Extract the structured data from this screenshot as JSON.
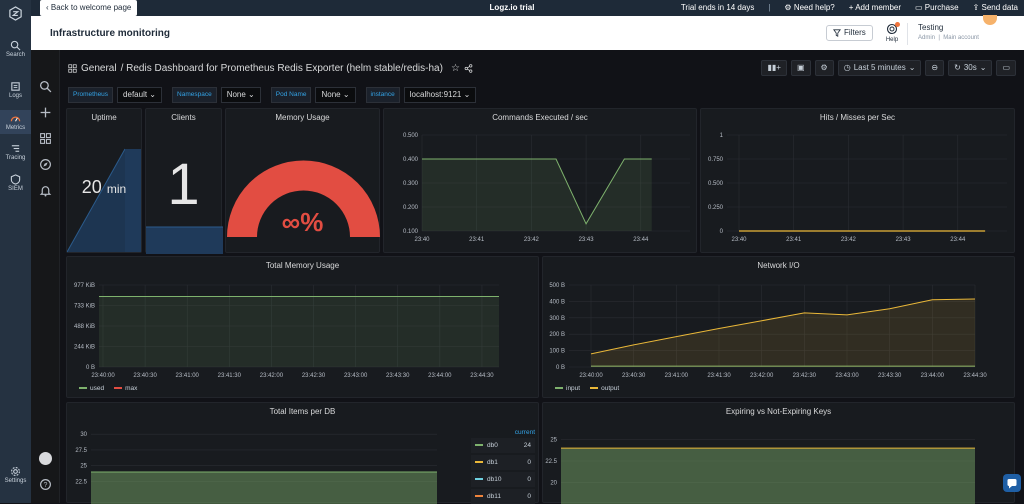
{
  "topbar": {
    "back_label": "Back to welcome page",
    "app_title": "Logz.io trial",
    "trial": "Trial ends in 14 days",
    "need_help": "Need help?",
    "add_member": "+ Add member",
    "purchase": "Purchase",
    "send_data": "Send data"
  },
  "leftnav": {
    "items": [
      {
        "label": "Search",
        "icon": "search-icon"
      },
      {
        "label": "Logs",
        "icon": "logs-icon"
      },
      {
        "label": "Metrics",
        "icon": "metrics-icon"
      },
      {
        "label": "Tracing",
        "icon": "tracing-icon"
      },
      {
        "label": "SIEM",
        "icon": "siem-icon"
      },
      {
        "label": "Settings",
        "icon": "gear-icon"
      }
    ]
  },
  "header": {
    "page_title": "Infrastructure monitoring",
    "filters_label": "Filters",
    "help_label": "Help",
    "account_name": "Testing",
    "account_role": "Admin",
    "account_link": "Main account"
  },
  "dashboard": {
    "folder": "General",
    "name": "/ Redis Dashboard for Prometheus Redis Exporter (helm stable/redis-ha)",
    "time_range": "Last 5 minutes",
    "refresh": "30s"
  },
  "variables": [
    {
      "label": "Prometheus",
      "value": "default"
    },
    {
      "label": "Namespace",
      "value": "None"
    },
    {
      "label": "Pod Name",
      "value": "None"
    },
    {
      "label": "instance",
      "value": "localhost:9121"
    }
  ],
  "panels": {
    "uptime": {
      "title": "Uptime",
      "value": "20",
      "unit": "min"
    },
    "clients": {
      "title": "Clients",
      "value": "1"
    },
    "memory": {
      "title": "Memory Usage",
      "value": "∞%"
    },
    "commands": {
      "title": "Commands Executed / sec"
    },
    "hits": {
      "title": "Hits / Misses per Sec"
    },
    "total_memory": {
      "title": "Total Memory Usage"
    },
    "network": {
      "title": "Network I/O"
    },
    "items_db": {
      "title": "Total Items per DB",
      "current_label": "current"
    },
    "expiring": {
      "title": "Expiring vs Not-Expiring Keys"
    }
  },
  "chart_data": [
    {
      "id": "commands",
      "type": "line",
      "title": "Commands Executed / sec",
      "x": [
        "23:40",
        "23:41",
        "23:42",
        "23:43",
        "23:44"
      ],
      "series": [
        {
          "values_pts": [
            [
              0,
              0.4
            ],
            [
              2.45,
              0.4
            ],
            [
              3.0,
              0.13
            ],
            [
              3.7,
              0.4
            ],
            [
              4.2,
              0.4
            ]
          ]
        }
      ],
      "yticks": [
        "0.100",
        "0.200",
        "0.300",
        "0.400",
        "0.500"
      ],
      "ylim": [
        0.1,
        0.5
      ]
    },
    {
      "id": "hits",
      "type": "line",
      "title": "Hits / Misses per Sec",
      "x": [
        "23:40",
        "23:41",
        "23:42",
        "23:43",
        "23:44"
      ],
      "series": [
        {
          "values_pts": [
            [
              0,
              0
            ],
            [
              4.5,
              0
            ]
          ]
        }
      ],
      "yticks": [
        "0",
        "0.250",
        "0.500",
        "0.750",
        "1"
      ],
      "ylim": [
        0,
        1
      ]
    },
    {
      "id": "total_memory",
      "type": "area",
      "title": "Total Memory Usage",
      "x": [
        "23:40:00",
        "23:40:30",
        "23:41:00",
        "23:41:30",
        "23:42:00",
        "23:42:30",
        "23:43:00",
        "23:43:30",
        "23:44:00",
        "23:44:30"
      ],
      "yticks": [
        "0 B",
        "244 KiB",
        "488 KiB",
        "733 KiB",
        "977 KiB"
      ],
      "ylim": [
        0,
        977
      ],
      "series": [
        {
          "name": "used",
          "values": [
            840,
            840,
            840,
            840,
            840,
            840,
            840,
            840,
            840,
            840
          ]
        },
        {
          "name": "max",
          "values": [
            0,
            0,
            0,
            0,
            0,
            0,
            0,
            0,
            0,
            0
          ]
        }
      ]
    },
    {
      "id": "network",
      "type": "area",
      "title": "Network I/O",
      "x": [
        "23:40:00",
        "23:40:30",
        "23:41:00",
        "23:41:30",
        "23:42:00",
        "23:42:30",
        "23:43:00",
        "23:43:30",
        "23:44:00",
        "23:44:30"
      ],
      "yticks": [
        "0 B",
        "100 B",
        "200 B",
        "300 B",
        "400 B",
        "500 B"
      ],
      "ylim": [
        0,
        500
      ],
      "series": [
        {
          "name": "input",
          "values": [
            5,
            5,
            5,
            5,
            5,
            5,
            5,
            5,
            5,
            5
          ]
        },
        {
          "name": "output",
          "values": [
            80,
            135,
            185,
            235,
            282,
            330,
            318,
            355,
            410,
            415
          ]
        }
      ]
    },
    {
      "id": "items_db",
      "type": "area",
      "title": "Total Items per DB",
      "yticks": [
        "22.5",
        "25",
        "27.5",
        "30"
      ],
      "ylim": [
        21,
        30.5
      ],
      "series": [
        {
          "name": "db0",
          "current": "24"
        },
        {
          "name": "db1",
          "current": "0"
        },
        {
          "name": "db10",
          "current": "0"
        },
        {
          "name": "db11",
          "current": "0"
        }
      ]
    },
    {
      "id": "expiring",
      "type": "area",
      "title": "Expiring vs Not-Expiring Keys",
      "yticks": [
        "20",
        "22.5",
        "25"
      ],
      "ylim": [
        19,
        26
      ]
    }
  ],
  "colors": {
    "green": "#7eb26d",
    "orange": "#eab839",
    "red": "#e24d42",
    "blue_fill": "#1f3a5a"
  }
}
